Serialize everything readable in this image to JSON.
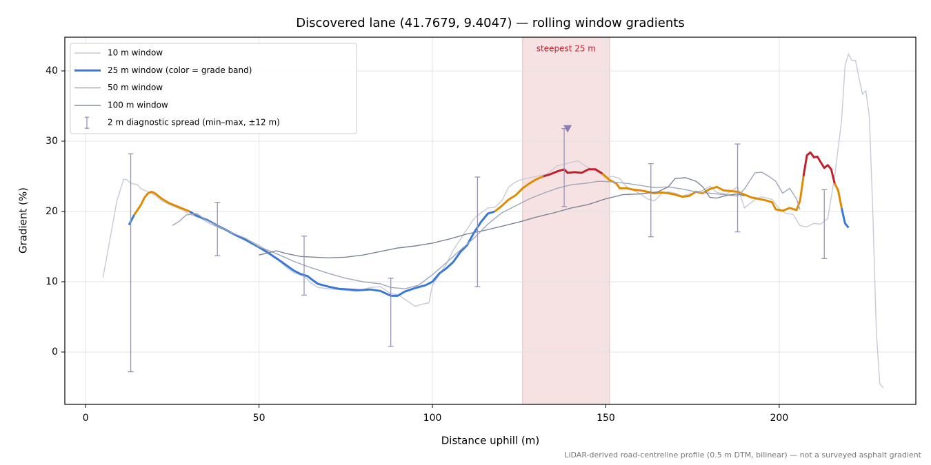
{
  "chart_data": {
    "type": "line",
    "title": "Discovered lane (41.7679, 9.4047) — rolling window gradients",
    "x_label": "Distance uphill (m)",
    "y_label": "Gradient (%)",
    "footnote": "LiDAR-derived road-centreline profile (0.5 m DTM, bilinear) — not a surveyed asphalt gradient",
    "xlim": [
      -6,
      239.4
    ],
    "ylim": [
      -7.45,
      44.8
    ],
    "xticks": [
      0,
      50,
      100,
      150,
      200
    ],
    "yticks": [
      0,
      10,
      20,
      30,
      40
    ],
    "grid": true,
    "legend": "upper left",
    "highlight": {
      "x": [
        126,
        151.1
      ],
      "label": "steepest 25 m",
      "color": "#c0202a"
    },
    "series": [
      {
        "name": "10 m window",
        "color": "#c5cad6",
        "x": [
          5,
          7,
          9,
          11,
          12,
          13,
          15,
          16,
          18,
          20,
          22,
          25,
          28,
          30,
          33,
          36,
          40,
          45,
          50,
          55,
          58,
          60,
          63,
          65,
          67,
          70,
          75,
          78,
          82,
          85,
          88,
          90,
          93,
          95,
          97,
          99,
          100,
          102,
          104,
          106,
          108,
          110,
          112,
          114,
          116,
          118,
          120,
          122,
          124,
          126,
          128,
          130,
          133,
          136,
          138,
          140,
          142,
          144,
          146,
          148,
          150,
          152,
          154,
          156,
          158,
          160,
          162,
          164,
          166,
          168,
          170,
          172,
          175,
          178,
          180,
          182,
          185,
          188,
          190,
          193,
          195,
          198,
          200,
          202,
          204,
          206,
          208,
          210,
          212,
          214,
          216,
          218,
          219,
          220,
          221,
          222,
          223,
          224,
          225,
          226,
          227,
          228,
          229,
          230
        ],
        "values": [
          10.6,
          16,
          21.5,
          24.6,
          24.5,
          24.0,
          23.8,
          23.2,
          22.8,
          22.3,
          21.5,
          20.8,
          20.2,
          19.6,
          19.1,
          18.2,
          17.4,
          16.4,
          15.2,
          13.4,
          12.0,
          11.3,
          10.8,
          9.8,
          9.2,
          9.0,
          8.8,
          8.6,
          9.2,
          9.3,
          8.3,
          8.2,
          7.2,
          6.5,
          6.8,
          7.0,
          9.5,
          11.0,
          12.5,
          14.5,
          16.0,
          17.5,
          19.0,
          19.8,
          20.5,
          20.6,
          21.5,
          23.5,
          24.2,
          24.6,
          24.8,
          25.0,
          25.3,
          26.5,
          26.7,
          27.0,
          27.2,
          26.5,
          26.0,
          25.5,
          24.8,
          25.0,
          24.7,
          23.5,
          23.0,
          22.5,
          21.8,
          21.5,
          22.5,
          22.8,
          22.6,
          22.2,
          22.6,
          23.0,
          23.6,
          22.7,
          22.5,
          23.5,
          20.5,
          21.7,
          22.1,
          21.7,
          20.4,
          19.7,
          19.6,
          18.0,
          17.8,
          18.3,
          18.2,
          19.0,
          25.0,
          33.0,
          40.8,
          42.4,
          41.5,
          41.5,
          39.0,
          36.7,
          37.2,
          33.5,
          20.0,
          3.0,
          -4.5,
          -5.1
        ]
      },
      {
        "name": "25 m window (color = grade band)",
        "color": "#3a78d8",
        "grade_bands": [
          {
            "below": 20,
            "color": "#3a78d8"
          },
          {
            "below": 25,
            "color": "#e08a00"
          },
          {
            "color": "#c0202a"
          }
        ],
        "x": [
          12.5,
          14,
          16,
          17,
          18,
          19,
          20,
          22,
          24,
          26,
          28,
          30,
          32,
          35,
          38,
          40,
          43,
          46,
          50,
          53,
          56,
          58,
          60,
          62,
          64,
          65,
          67,
          70,
          73,
          76,
          79,
          82,
          85,
          88,
          90,
          92,
          95,
          98,
          100,
          102,
          104,
          106,
          108,
          110,
          112,
          114,
          116,
          118,
          120,
          122,
          124,
          126,
          128,
          130,
          132,
          134,
          136,
          138,
          139,
          141,
          143,
          145,
          147,
          149,
          151,
          153,
          154,
          156,
          158,
          160,
          162,
          164,
          166,
          168,
          170,
          172,
          174,
          176,
          178,
          180,
          182,
          184,
          186,
          188,
          190,
          192,
          194,
          196,
          198,
          199,
          201,
          203,
          205,
          206,
          207,
          208,
          209,
          210,
          211,
          212,
          213,
          214,
          215,
          216,
          217,
          218,
          219,
          220
        ],
        "values": [
          18.1,
          19.5,
          21.0,
          22.0,
          22.6,
          22.8,
          22.6,
          21.8,
          21.2,
          20.8,
          20.4,
          20.0,
          19.4,
          18.8,
          18.0,
          17.5,
          16.7,
          16.0,
          14.9,
          14.0,
          13.0,
          12.3,
          11.6,
          11.1,
          10.8,
          10.4,
          9.7,
          9.3,
          9.0,
          8.9,
          8.8,
          8.9,
          8.7,
          8.0,
          8.0,
          8.6,
          9.1,
          9.5,
          10.0,
          11.2,
          11.9,
          12.8,
          14.2,
          15.2,
          17.0,
          18.5,
          19.7,
          20.0,
          20.8,
          21.7,
          22.3,
          23.3,
          24.0,
          24.6,
          25.0,
          25.3,
          25.7,
          26.0,
          25.5,
          25.6,
          25.5,
          26.0,
          26.0,
          25.4,
          24.5,
          24.0,
          23.3,
          23.3,
          23.1,
          23.0,
          22.8,
          22.6,
          22.7,
          22.6,
          22.4,
          22.1,
          22.2,
          22.8,
          22.6,
          23.2,
          23.5,
          23.0,
          22.9,
          22.8,
          22.4,
          22.0,
          21.8,
          21.6,
          21.3,
          20.3,
          20.1,
          20.5,
          20.2,
          21.5,
          25.0,
          28.0,
          28.4,
          27.7,
          27.8,
          27.0,
          26.2,
          26.6,
          26.0,
          24.0,
          23.0,
          20.5,
          18.3,
          17.7
        ]
      },
      {
        "name": "50 m window",
        "color": "#9ea6ba",
        "x": [
          25,
          27,
          29,
          32,
          35,
          38,
          42,
          46,
          50,
          55,
          60,
          65,
          70,
          75,
          80,
          85,
          88,
          92,
          96,
          100,
          104,
          108,
          112,
          116,
          120,
          124,
          128,
          132,
          136,
          140,
          144,
          148,
          152,
          156,
          160,
          164,
          168,
          172,
          176,
          180,
          184,
          188,
          190,
          193,
          195,
          197,
          199,
          201,
          203,
          205,
          206
        ],
        "values": [
          18.0,
          18.6,
          19.5,
          19.7,
          18.7,
          18.0,
          17.0,
          16.2,
          15.0,
          14.0,
          12.9,
          12.0,
          11.2,
          10.5,
          10.0,
          9.7,
          9.2,
          9.0,
          9.5,
          11.0,
          12.7,
          14.5,
          16.2,
          18.2,
          19.8,
          20.8,
          21.8,
          22.6,
          23.3,
          23.8,
          24.0,
          24.3,
          24.2,
          24.0,
          23.7,
          23.4,
          23.5,
          23.2,
          22.8,
          22.6,
          22.4,
          22.2,
          23.2,
          25.5,
          25.6,
          25.0,
          24.3,
          22.6,
          23.3,
          21.8,
          20.3
        ]
      },
      {
        "name": "100 m window",
        "color": "#7a8394",
        "x": [
          50,
          55,
          58,
          62,
          66,
          70,
          75,
          80,
          85,
          90,
          95,
          100,
          105,
          110,
          115,
          120,
          125,
          130,
          135,
          140,
          145,
          150,
          155,
          160,
          165,
          168,
          170,
          173,
          176,
          178,
          180,
          182,
          185,
          188,
          190
        ],
        "values": [
          13.8,
          14.4,
          14.0,
          13.6,
          13.5,
          13.4,
          13.5,
          13.8,
          14.3,
          14.8,
          15.1,
          15.5,
          16.1,
          16.8,
          17.3,
          17.9,
          18.5,
          19.2,
          19.8,
          20.5,
          21.0,
          21.8,
          22.4,
          22.5,
          22.8,
          23.5,
          24.7,
          24.8,
          24.3,
          23.5,
          22.0,
          21.9,
          22.3,
          22.5,
          22.2
        ]
      }
    ],
    "errorbars": {
      "name": "2 m diagnostic spread (min–max, ±12 m)",
      "color": "#9a90bd",
      "x": [
        13,
        38,
        63,
        88,
        113,
        138,
        163,
        188,
        213
      ],
      "low": [
        -2.8,
        13.7,
        8.1,
        0.8,
        9.3,
        20.7,
        16.4,
        17.1,
        13.3
      ],
      "high": [
        28.2,
        21.3,
        16.5,
        10.5,
        24.9,
        31.8,
        26.8,
        29.6,
        23.1
      ]
    },
    "peak_marker": {
      "x": 139,
      "y": 31.8,
      "color": "#8a80b0"
    }
  }
}
